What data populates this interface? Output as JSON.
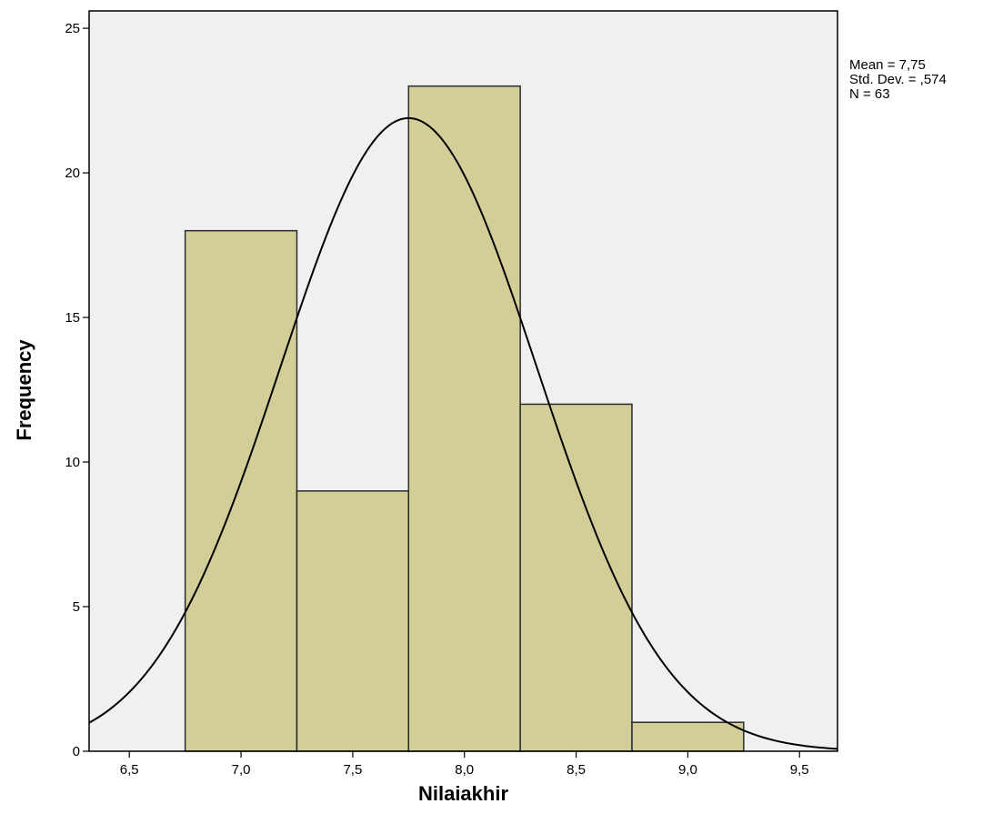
{
  "chart_data": {
    "type": "bar",
    "subtype": "histogram",
    "title": "",
    "xlabel": "Nilaiakhir",
    "ylabel": "Frequency",
    "bins": [
      {
        "start": 6.75,
        "end": 7.25,
        "count": 18
      },
      {
        "start": 7.25,
        "end": 7.75,
        "count": 9
      },
      {
        "start": 7.75,
        "end": 8.25,
        "count": 23
      },
      {
        "start": 8.25,
        "end": 8.75,
        "count": 12
      },
      {
        "start": 8.75,
        "end": 9.25,
        "count": 1
      }
    ],
    "xlim": [
      6.32,
      9.67
    ],
    "ylim": [
      0,
      25.6
    ],
    "x_ticks": [
      6.5,
      7.0,
      7.5,
      8.0,
      8.5,
      9.0,
      9.5
    ],
    "x_tick_labels": [
      "6,5",
      "7,0",
      "7,5",
      "8,0",
      "8,5",
      "9,0",
      "9,5"
    ],
    "y_ticks": [
      0,
      5,
      10,
      15,
      20,
      25
    ],
    "y_tick_labels": [
      "0",
      "5",
      "10",
      "15",
      "20",
      "25"
    ],
    "normal_curve": {
      "mean": 7.75,
      "std": 0.574,
      "n": 63,
      "bin_width": 0.5
    },
    "stats": [
      "Mean = 7,75",
      "Std. Dev. = ,574",
      "N = 63"
    ],
    "grid": false,
    "colors": {
      "plot_background": "#f0f0f0",
      "bar_fill": "#d3ce97",
      "bar_stroke": "#2b2b2b",
      "curve": "#000000",
      "axis": "#000000"
    }
  }
}
